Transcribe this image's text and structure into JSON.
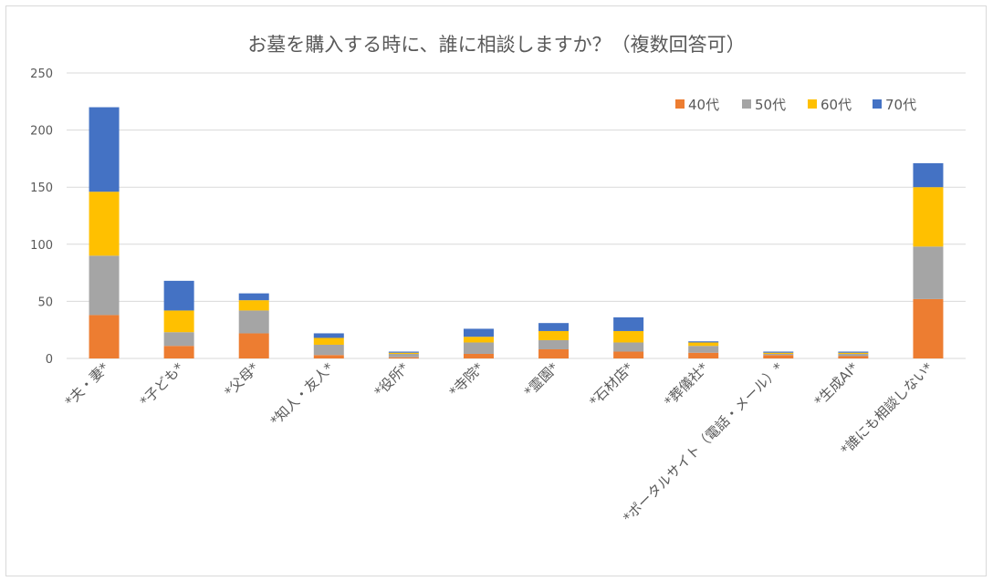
{
  "chart_data": {
    "type": "bar",
    "stacked": true,
    "title": "お墓を購入する時に、誰に相談しますか？（複数回答可）",
    "xlabel": "",
    "ylabel": "",
    "ylim": [
      0,
      250
    ],
    "yticks": [
      0,
      50,
      100,
      150,
      200,
      250
    ],
    "grid": true,
    "legend_position": "top-right",
    "categories": [
      "*夫・妻*",
      "*子ども*",
      "*父母*",
      "*知人・友人*",
      "*役所*",
      "*寺院*",
      "*霊園*",
      "*石材店*",
      "*葬儀社*",
      "*ポータルサイト（電話・メール）*",
      "*生成AI*",
      "*誰にも相談しない*"
    ],
    "series": [
      {
        "name": "40代",
        "color": "#ED7D31",
        "values": [
          38,
          11,
          22,
          3,
          1,
          4,
          8,
          6,
          5,
          3,
          2,
          52
        ]
      },
      {
        "name": "50代",
        "color": "#A5A5A5",
        "values": [
          52,
          12,
          20,
          9,
          3,
          10,
          8,
          8,
          6,
          1,
          2,
          46
        ]
      },
      {
        "name": "60代",
        "color": "#FFC000",
        "values": [
          56,
          19,
          9,
          6,
          1,
          5,
          8,
          10,
          3,
          1,
          1,
          52
        ]
      },
      {
        "name": "70代",
        "color": "#4472C4",
        "values": [
          74,
          26,
          6,
          4,
          1,
          7,
          7,
          12,
          1,
          1,
          1,
          21
        ]
      }
    ]
  }
}
